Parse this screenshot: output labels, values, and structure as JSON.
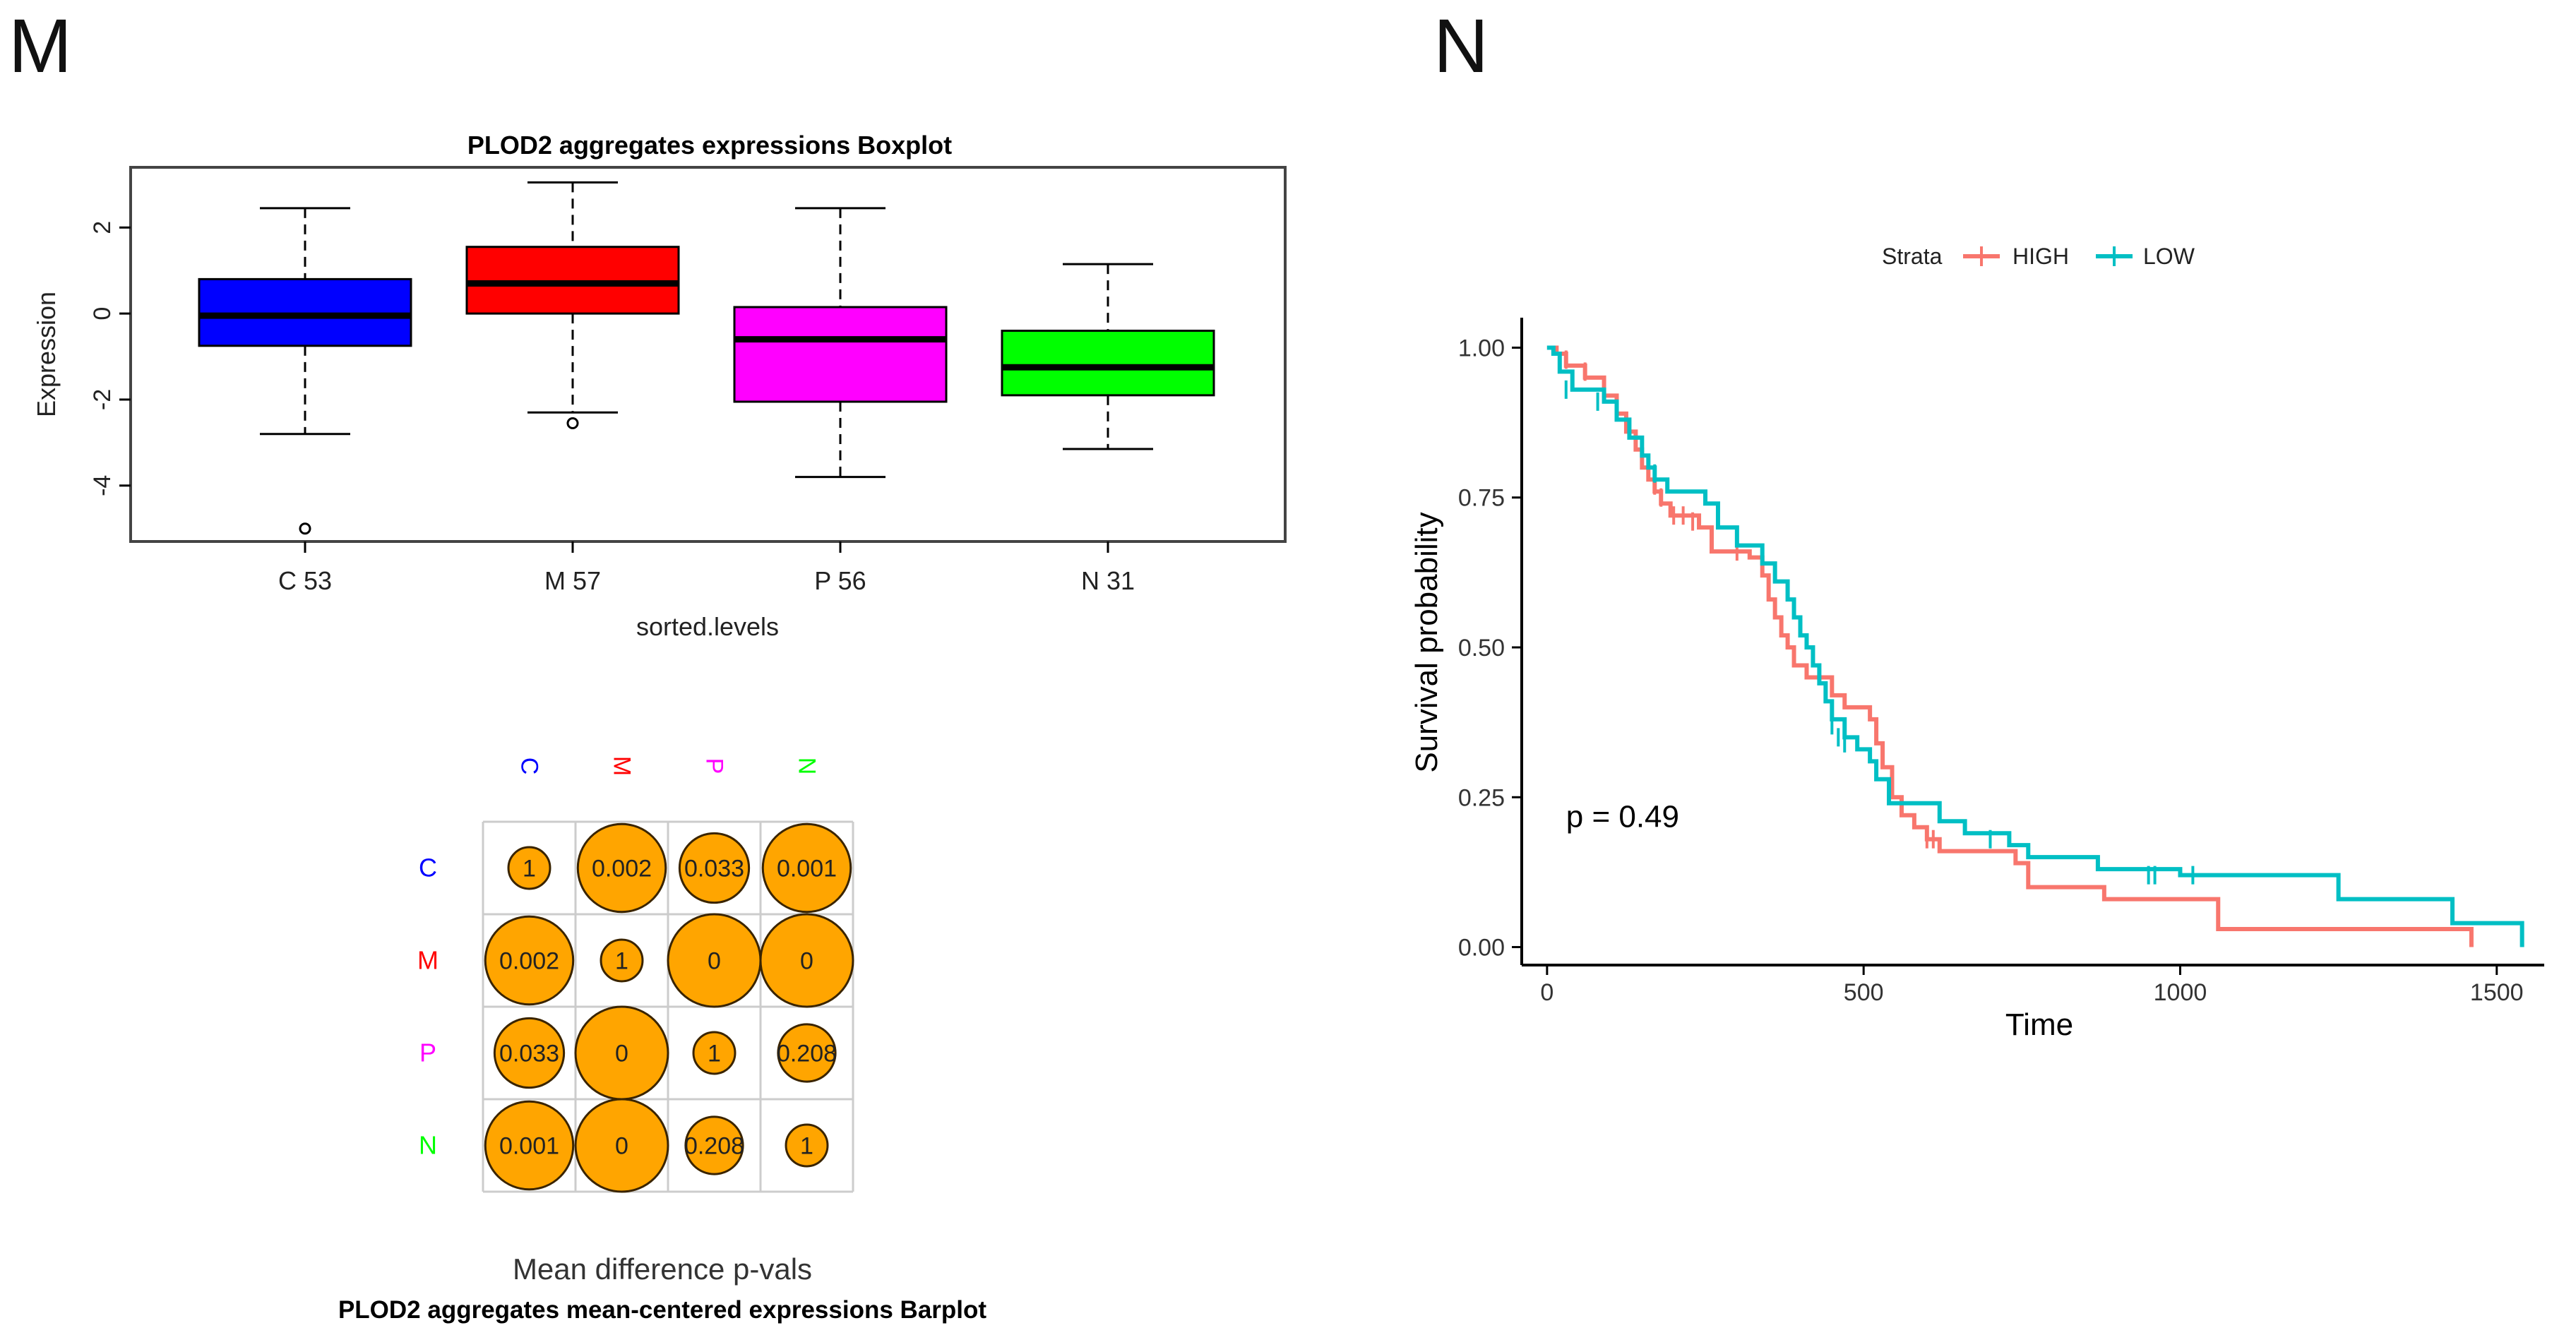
{
  "panels": {
    "left_letter": "M",
    "right_letter": "N"
  },
  "colors": {
    "C": "#0000ff",
    "M": "#ff0000",
    "P": "#ff00ff",
    "N": "#00ff00",
    "circle": "#ffa500",
    "high": "#f8766d",
    "low": "#00bfc4"
  },
  "chart_data": [
    {
      "type": "boxplot",
      "title": "PLOD2 aggregates expressions Boxplot",
      "xlabel": "sorted.levels",
      "ylabel": "Expression",
      "ylim": [
        -5.3,
        3.4
      ],
      "yticks": [
        2,
        0,
        -2,
        -4
      ],
      "ytick_labels": [
        "2",
        "0",
        "-2",
        "-4"
      ],
      "boxes": [
        {
          "key": "C",
          "label": "C 53",
          "whisker_low": -2.8,
          "q1": -0.75,
          "median": -0.05,
          "q3": 0.8,
          "whisker_high": 2.45,
          "outliers": [
            -5.0
          ]
        },
        {
          "key": "M",
          "label": "M 57",
          "whisker_low": -2.3,
          "q1": 0.0,
          "median": 0.7,
          "q3": 1.55,
          "whisker_high": 3.05,
          "outliers": [
            -2.55
          ]
        },
        {
          "key": "P",
          "label": "P 56",
          "whisker_low": -3.8,
          "q1": -2.05,
          "median": -0.6,
          "q3": 0.15,
          "whisker_high": 2.45,
          "outliers": []
        },
        {
          "key": "N",
          "label": "N 31",
          "whisker_low": -3.15,
          "q1": -1.9,
          "median": -1.25,
          "q3": -0.4,
          "whisker_high": 1.15,
          "outliers": []
        }
      ]
    },
    {
      "type": "heatmap",
      "subtitle": "Mean difference p-vals",
      "title": "PLOD2 aggregates mean-centered expressions Barplot",
      "labels": [
        "C",
        "M",
        "P",
        "N"
      ],
      "values": [
        [
          "1",
          "0.002",
          "0.033",
          "0.001"
        ],
        [
          "0.002",
          "1",
          "0",
          "0"
        ],
        [
          "0.033",
          "0",
          "1",
          "0.208"
        ],
        [
          "0.001",
          "0",
          "0.208",
          "1"
        ]
      ],
      "circle_size": [
        [
          0.45,
          0.95,
          0.75,
          0.95
        ],
        [
          0.95,
          0.45,
          1.0,
          1.0
        ],
        [
          0.75,
          1.0,
          0.45,
          0.62
        ],
        [
          0.95,
          1.0,
          0.62,
          0.45
        ]
      ]
    },
    {
      "type": "line",
      "subtype": "kaplan-meier",
      "xlabel": "Time",
      "ylabel": "Survival probability",
      "legend_title": "Strata",
      "legend_position": "top",
      "xlim": [
        -40,
        1575
      ],
      "ylim": [
        -0.03,
        1.05
      ],
      "xticks": [
        0,
        500,
        1000,
        1500
      ],
      "xtick_labels": [
        "0",
        "500",
        "1000",
        "1500"
      ],
      "yticks": [
        0.0,
        0.25,
        0.5,
        0.75,
        1.0
      ],
      "ytick_labels": [
        "0.00",
        "0.25",
        "0.50",
        "0.75",
        "1.00"
      ],
      "annotation": "p = 0.49",
      "annotation_at": [
        30,
        0.2
      ],
      "series": [
        {
          "name": "HIGH",
          "color_key": "high",
          "steps": [
            [
              0,
              1.0
            ],
            [
              15,
              0.99
            ],
            [
              30,
              0.97
            ],
            [
              60,
              0.95
            ],
            [
              90,
              0.92
            ],
            [
              110,
              0.89
            ],
            [
              125,
              0.86
            ],
            [
              140,
              0.83
            ],
            [
              150,
              0.8
            ],
            [
              160,
              0.78
            ],
            [
              170,
              0.76
            ],
            [
              180,
              0.74
            ],
            [
              195,
              0.72
            ],
            [
              240,
              0.7
            ],
            [
              260,
              0.66
            ],
            [
              320,
              0.65
            ],
            [
              340,
              0.62
            ],
            [
              350,
              0.58
            ],
            [
              360,
              0.55
            ],
            [
              370,
              0.52
            ],
            [
              380,
              0.5
            ],
            [
              390,
              0.47
            ],
            [
              410,
              0.45
            ],
            [
              450,
              0.42
            ],
            [
              470,
              0.4
            ],
            [
              510,
              0.38
            ],
            [
              520,
              0.34
            ],
            [
              530,
              0.3
            ],
            [
              545,
              0.25
            ],
            [
              560,
              0.22
            ],
            [
              580,
              0.2
            ],
            [
              600,
              0.18
            ],
            [
              620,
              0.16
            ],
            [
              740,
              0.14
            ],
            [
              760,
              0.1
            ],
            [
              880,
              0.08
            ],
            [
              1060,
              0.03
            ],
            [
              1450,
              0.03
            ],
            [
              1460,
              0.0
            ]
          ],
          "censored": [
            [
              30,
              0.98
            ],
            [
              60,
              0.96
            ],
            [
              170,
              0.77
            ],
            [
              180,
              0.75
            ],
            [
              200,
              0.72
            ],
            [
              215,
              0.72
            ],
            [
              230,
              0.71
            ],
            [
              300,
              0.66
            ],
            [
              600,
              0.18
            ],
            [
              610,
              0.18
            ]
          ]
        },
        {
          "name": "LOW",
          "color_key": "low",
          "steps": [
            [
              0,
              1.0
            ],
            [
              10,
              0.99
            ],
            [
              20,
              0.96
            ],
            [
              40,
              0.93
            ],
            [
              90,
              0.91
            ],
            [
              110,
              0.88
            ],
            [
              130,
              0.85
            ],
            [
              150,
              0.82
            ],
            [
              160,
              0.8
            ],
            [
              170,
              0.78
            ],
            [
              190,
              0.76
            ],
            [
              250,
              0.74
            ],
            [
              270,
              0.7
            ],
            [
              300,
              0.67
            ],
            [
              340,
              0.64
            ],
            [
              360,
              0.61
            ],
            [
              380,
              0.58
            ],
            [
              390,
              0.55
            ],
            [
              400,
              0.52
            ],
            [
              410,
              0.5
            ],
            [
              420,
              0.47
            ],
            [
              430,
              0.44
            ],
            [
              440,
              0.41
            ],
            [
              450,
              0.38
            ],
            [
              470,
              0.35
            ],
            [
              490,
              0.33
            ],
            [
              510,
              0.31
            ],
            [
              520,
              0.28
            ],
            [
              540,
              0.24
            ],
            [
              620,
              0.21
            ],
            [
              660,
              0.19
            ],
            [
              730,
              0.17
            ],
            [
              760,
              0.15
            ],
            [
              870,
              0.13
            ],
            [
              1000,
              0.12
            ],
            [
              1250,
              0.08
            ],
            [
              1430,
              0.04
            ],
            [
              1540,
              0.0
            ]
          ],
          "censored": [
            [
              30,
              0.93
            ],
            [
              80,
              0.91
            ],
            [
              170,
              0.79
            ],
            [
              450,
              0.37
            ],
            [
              460,
              0.35
            ],
            [
              470,
              0.34
            ],
            [
              700,
              0.18
            ],
            [
              950,
              0.12
            ],
            [
              960,
              0.12
            ],
            [
              1020,
              0.12
            ]
          ]
        }
      ]
    }
  ]
}
